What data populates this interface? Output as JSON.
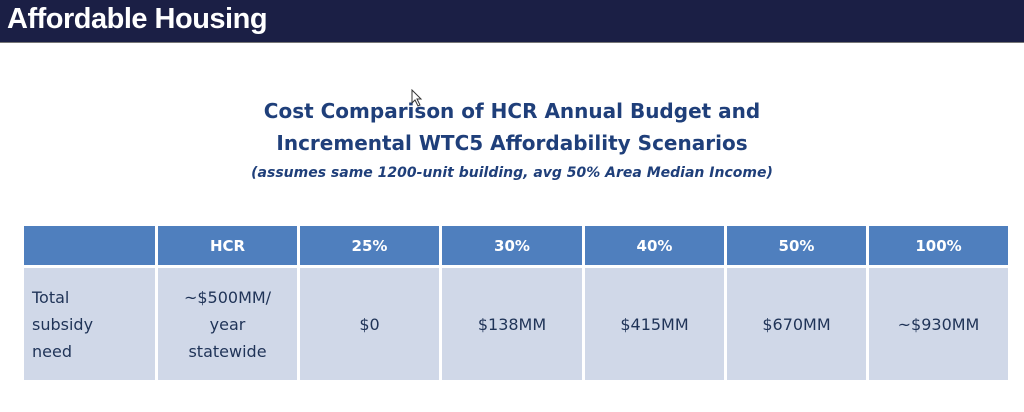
{
  "header": {
    "title": "Affordable Housing"
  },
  "slide": {
    "title_line1": "Cost Comparison of HCR Annual Budget and",
    "title_line2": "Incremental WTC5 Affordability Scenarios",
    "subtitle": "(assumes same 1200-unit building, avg 50% Area Median Income)"
  },
  "table": {
    "headers": [
      "",
      "HCR",
      "25%",
      "30%",
      "40%",
      "50%",
      "100%"
    ],
    "row": {
      "label": "Total subsidy need",
      "values": [
        "~$500MM/ year statewide",
        "$0",
        "$138MM",
        "$415MM",
        "$670MM",
        "~$930MM"
      ]
    }
  }
}
